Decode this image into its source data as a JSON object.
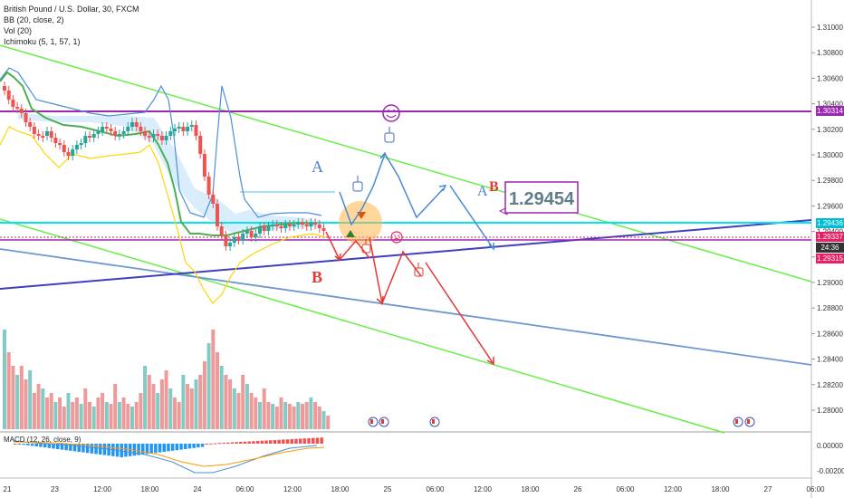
{
  "legend": {
    "title": "British Pound / U.S. Dollar, 30, FXCM",
    "bb": "BB (20, close, 2)",
    "vol": "Vol (20)",
    "ichimoku": "Ichimoku (5, 1, 57, 1)",
    "macd": "MACD (12, 26, close, 9)"
  },
  "price_axis": {
    "ticks": [
      "1.31000",
      "1.30800",
      "1.30600",
      "1.30400",
      "1.30200",
      "1.30000",
      "1.29800",
      "1.29600",
      "1.29400",
      "1.29200",
      "1.29000",
      "1.28800",
      "1.28600",
      "1.28400",
      "1.28200",
      "1.28000"
    ],
    "tags": {
      "purple": "1.30314",
      "cyan": "1.29436",
      "pink_price": "1.29337",
      "timer": "24:36",
      "pink_low": "1.29315"
    },
    "colors": {
      "purple": "#9c27b0",
      "cyan": "#00bcd4",
      "pink": "#e91e63",
      "dark": "#333333"
    }
  },
  "macd_axis": {
    "ticks": [
      "0.00000",
      "-0.00200"
    ]
  },
  "time_axis": {
    "ticks": [
      "21",
      "23",
      "12:00",
      "18:00",
      "24",
      "06:00",
      "12:00",
      "18:00",
      "25",
      "06:00",
      "12:00",
      "18:00",
      "26",
      "06:00",
      "12:00",
      "18:00",
      "27",
      "06:00"
    ]
  },
  "annotations": {
    "callout_price": "1.29454",
    "label_a1": "A",
    "label_b1": "B",
    "label_a2": "A",
    "label_b2": "B",
    "smiley_icon": "smiley-face-icon",
    "sad_icon": "sad-face-icon",
    "hand_icon": "pointing-hand-icon"
  },
  "chart_data": {
    "type": "candlestick",
    "instrument": "British Pound / U.S. Dollar",
    "timeframe": "30",
    "source": "FXCM",
    "y_range": [
      1.2775,
      1.3115
    ],
    "current_price": 1.29337,
    "horizontal_levels": [
      1.30314,
      1.29436,
      1.29337,
      1.29315
    ],
    "callout": 1.29454
  }
}
